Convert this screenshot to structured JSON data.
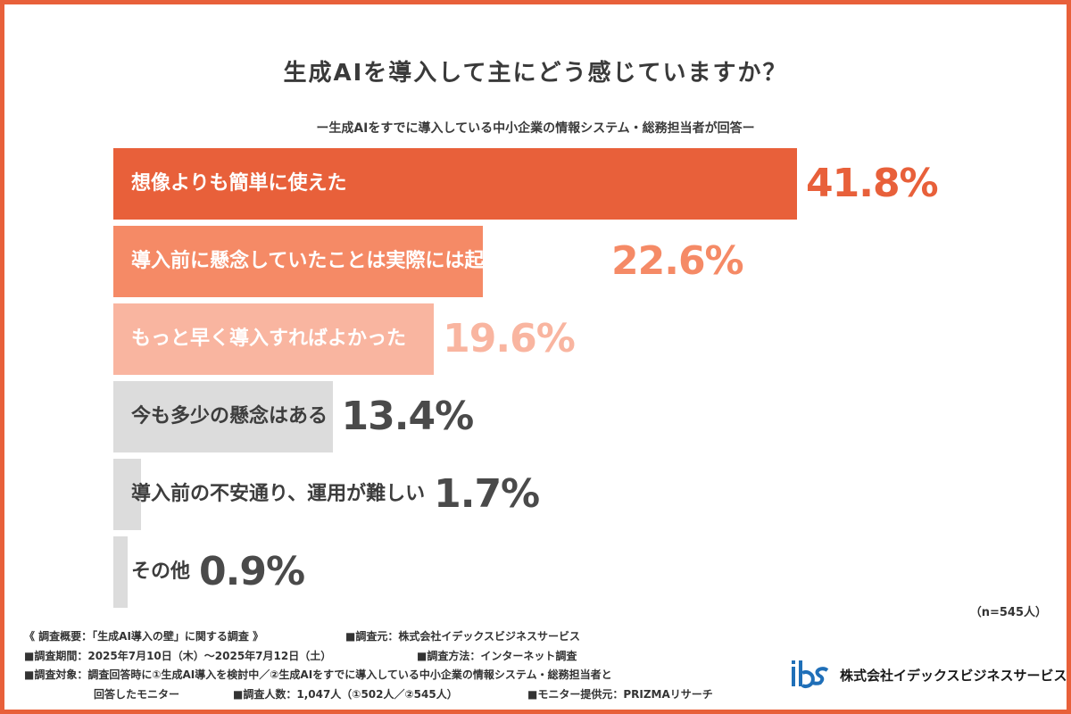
{
  "title": "生成AIを導入して主にどう感じていますか？",
  "subtitle": "ー生成AIをすでに導入している中小企業の情報システム・総務担当者が回答ー",
  "sample_size": "（n=545人）",
  "colors": {
    "border": "#e8603a",
    "bar_1": "#e8603a",
    "bar_2": "#f58a66",
    "bar_3": "#f9b5a0",
    "bar_gray": "#dcdcdc",
    "label_dark": "#3d3d3d",
    "value_dark": "#4a4a4a"
  },
  "chart_data": {
    "type": "bar",
    "orientation": "horizontal",
    "title": "生成AIを導入して主にどう感じていますか？",
    "subtitle": "ー生成AIをすでに導入している中小企業の情報システム・総務担当者が回答ー",
    "categories": [
      "想像よりも簡単に使えた",
      "導入前に懸念していたことは実際には起こらなかった",
      "もっと早く導入すればよかった",
      "今も多少の懸念はある",
      "導入前の不安通り、運用が難しい",
      "その他"
    ],
    "values": [
      41.8,
      22.6,
      19.6,
      13.4,
      1.7,
      0.9
    ],
    "value_labels": [
      "41.8%",
      "22.6%",
      "19.6%",
      "13.4%",
      "1.7%",
      "0.9%"
    ],
    "unit": "%",
    "xlim": [
      0,
      100
    ],
    "grid": false,
    "legend": "none"
  },
  "survey_notes": {
    "line1": {
      "overview": "《 調査概要：「生成AI導入の壁」に関する調査 》",
      "source": "■調査元：株式会社イデックスビジネスサービス"
    },
    "line2": {
      "period": "■調査期間：2025年7月10日（木）〜2025年7月12日（土）",
      "method": "■調査方法：インターネット調査"
    },
    "line3": {
      "target": "■調査対象：調査回答時に①生成AI導入を検討中／②生成AIをすでに導入している中小企業の情報システム・総務担当者と"
    },
    "line4": {
      "target_cont": "回答したモニター",
      "count": "■調査人数：1,047人（①502人／②545人）",
      "provider": "■モニター提供元：PRIZMAリサーチ"
    }
  },
  "logo": {
    "mark": "ibs",
    "company": "株式会社イデックスビジネスサービス"
  }
}
